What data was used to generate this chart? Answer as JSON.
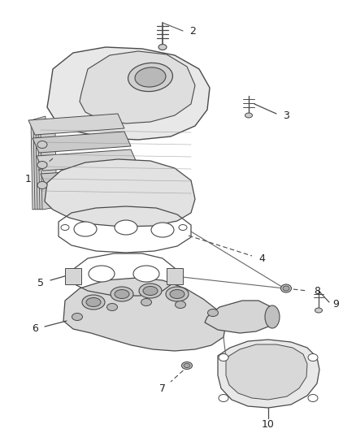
{
  "bg_color": "#ffffff",
  "lc": "#4a4a4a",
  "fill_light": "#e8e8e8",
  "fill_mid": "#d8d8d8",
  "fill_dark": "#c8c8c8",
  "label_fs": 9,
  "figsize": [
    4.38,
    5.33
  ],
  "dpi": 100
}
